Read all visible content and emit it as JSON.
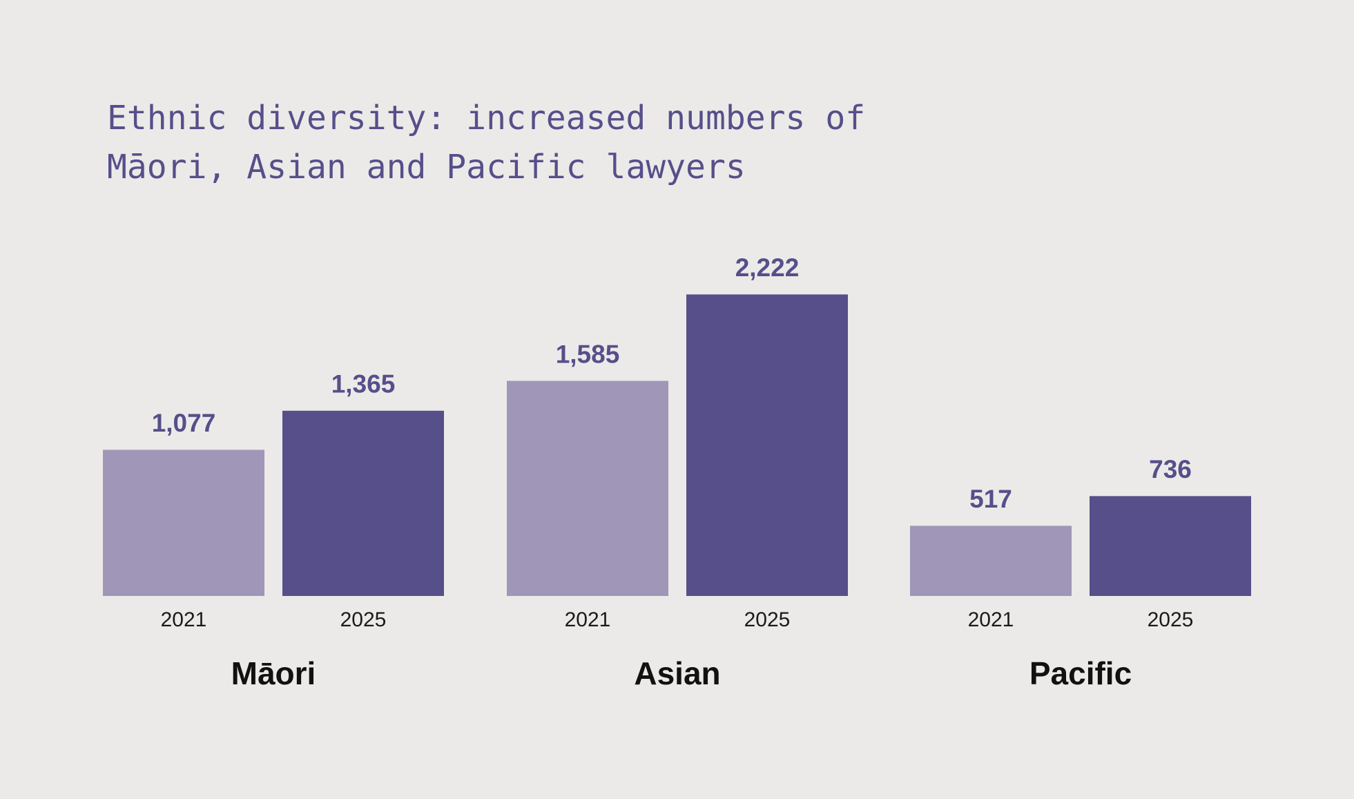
{
  "chart_data": {
    "type": "bar",
    "title": "Ethnic diversity: increased numbers of Māori, Asian and Pacific lawyers",
    "categories": [
      "Māori",
      "Asian",
      "Pacific"
    ],
    "series": [
      {
        "name": "2021",
        "color": "#a096b8",
        "values": [
          1077,
          1585,
          517
        ],
        "value_labels": [
          "1,077",
          "1,585",
          "517"
        ]
      },
      {
        "name": "2025",
        "color": "#564f8a",
        "values": [
          1365,
          2222,
          736
        ],
        "value_labels": [
          "1,365",
          "2,222",
          "736"
        ]
      }
    ]
  }
}
